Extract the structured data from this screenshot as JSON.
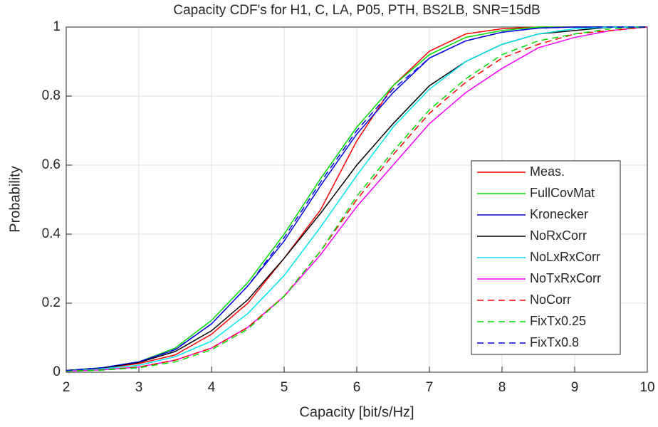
{
  "chart_data": {
    "type": "line",
    "title": "Capacity CDF's for H1, C, LA, P05, PTH, BS2LB, SNR=15dB",
    "x_label": "Capacity [bit/s/Hz]",
    "y_label": "Probability",
    "x": [
      2,
      2.5,
      3,
      3.5,
      4,
      4.5,
      5,
      5.5,
      6,
      6.5,
      7,
      7.5,
      8,
      8.5,
      9,
      9.5,
      10
    ],
    "series": [
      {
        "name": "Meas.",
        "color": "#ff0000",
        "linestyle": "solid",
        "values": [
          0.005,
          0.012,
          0.025,
          0.05,
          0.11,
          0.2,
          0.33,
          0.47,
          0.67,
          0.83,
          0.93,
          0.98,
          0.995,
          1,
          1,
          1,
          1
        ]
      },
      {
        "name": "FullCovMat",
        "color": "#00dd00",
        "linestyle": "solid",
        "values": [
          0.005,
          0.013,
          0.03,
          0.07,
          0.15,
          0.26,
          0.4,
          0.56,
          0.71,
          0.83,
          0.92,
          0.97,
          0.99,
          1,
          1,
          1,
          1
        ]
      },
      {
        "name": "Kronecker",
        "color": "#0000dd",
        "linestyle": "solid",
        "values": [
          0.005,
          0.013,
          0.03,
          0.065,
          0.14,
          0.25,
          0.38,
          0.54,
          0.69,
          0.81,
          0.91,
          0.96,
          0.985,
          0.997,
          1,
          1,
          1
        ]
      },
      {
        "name": "NoRxCorr",
        "color": "#000000",
        "linestyle": "solid",
        "values": [
          0.005,
          0.012,
          0.028,
          0.06,
          0.12,
          0.21,
          0.33,
          0.46,
          0.6,
          0.72,
          0.83,
          0.9,
          0.95,
          0.98,
          0.99,
          1,
          1
        ]
      },
      {
        "name": "NoLxRxCorr",
        "color": "#00e5ee",
        "linestyle": "solid",
        "values": [
          0.004,
          0.01,
          0.02,
          0.045,
          0.09,
          0.17,
          0.28,
          0.42,
          0.57,
          0.71,
          0.82,
          0.9,
          0.95,
          0.98,
          0.995,
          1,
          1
        ]
      },
      {
        "name": "NoTxRxCorr",
        "color": "#ff00ff",
        "linestyle": "solid",
        "values": [
          0.003,
          0.007,
          0.015,
          0.035,
          0.07,
          0.13,
          0.22,
          0.34,
          0.48,
          0.6,
          0.72,
          0.81,
          0.88,
          0.94,
          0.97,
          0.99,
          1
        ]
      },
      {
        "name": "NoCorr",
        "color": "#ff0000",
        "linestyle": "dashed",
        "values": [
          0.003,
          0.007,
          0.015,
          0.035,
          0.07,
          0.13,
          0.22,
          0.35,
          0.5,
          0.63,
          0.75,
          0.84,
          0.91,
          0.95,
          0.98,
          0.99,
          1
        ]
      },
      {
        "name": "FixTx0.25",
        "color": "#00dd00",
        "linestyle": "dashed",
        "values": [
          0.003,
          0.006,
          0.013,
          0.03,
          0.065,
          0.125,
          0.22,
          0.35,
          0.51,
          0.64,
          0.76,
          0.85,
          0.92,
          0.96,
          0.98,
          0.995,
          1
        ]
      },
      {
        "name": "FixTx0.8",
        "color": "#0000dd",
        "linestyle": "dashed",
        "values": [
          0.005,
          0.013,
          0.03,
          0.066,
          0.14,
          0.25,
          0.39,
          0.55,
          0.7,
          0.82,
          0.91,
          0.96,
          0.985,
          0.997,
          1,
          1,
          1
        ]
      }
    ],
    "xlim": [
      2,
      10
    ],
    "ylim": [
      0,
      1
    ],
    "xticks": [
      2,
      3,
      4,
      5,
      6,
      7,
      8,
      9,
      10
    ],
    "yticks": [
      0,
      0.2,
      0.4,
      0.6,
      0.8,
      1
    ],
    "grid": true,
    "legend": "lower right"
  }
}
